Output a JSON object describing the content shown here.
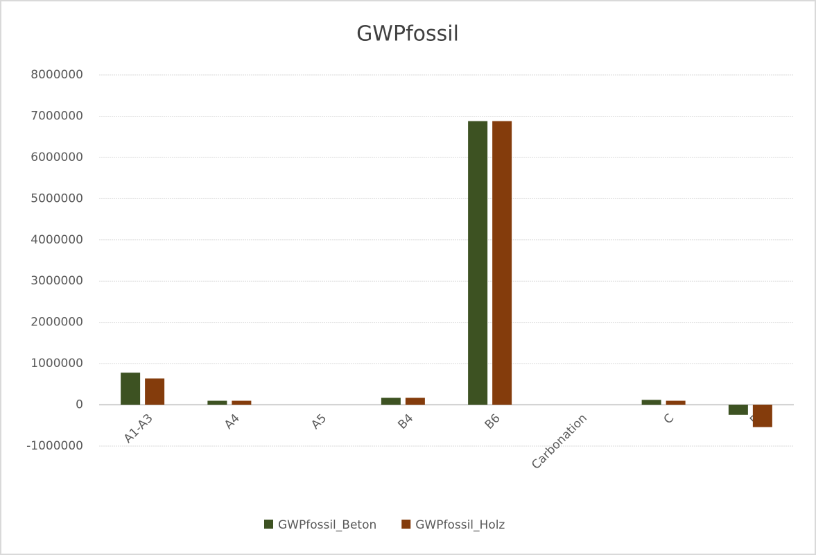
{
  "chart_data": {
    "type": "bar",
    "title": "GWPfossil",
    "categories": [
      "A1-A3",
      "A4",
      "A5",
      "B4",
      "B6",
      "Carbonation",
      "C",
      "D"
    ],
    "series": [
      {
        "name": "GWPfossil_Beton",
        "color": "#3d5222",
        "values": [
          780000,
          100000,
          0,
          170000,
          6880000,
          0,
          120000,
          -240000
        ]
      },
      {
        "name": "GWPfossil_Holz",
        "color": "#843c0c",
        "values": [
          640000,
          100000,
          0,
          170000,
          6880000,
          0,
          100000,
          -540000
        ]
      }
    ],
    "ylim": [
      -1000000,
      8000000
    ],
    "yticks": [
      -1000000,
      0,
      1000000,
      2000000,
      3000000,
      4000000,
      5000000,
      6000000,
      7000000,
      8000000
    ],
    "grid": true,
    "legend": "bottom"
  }
}
